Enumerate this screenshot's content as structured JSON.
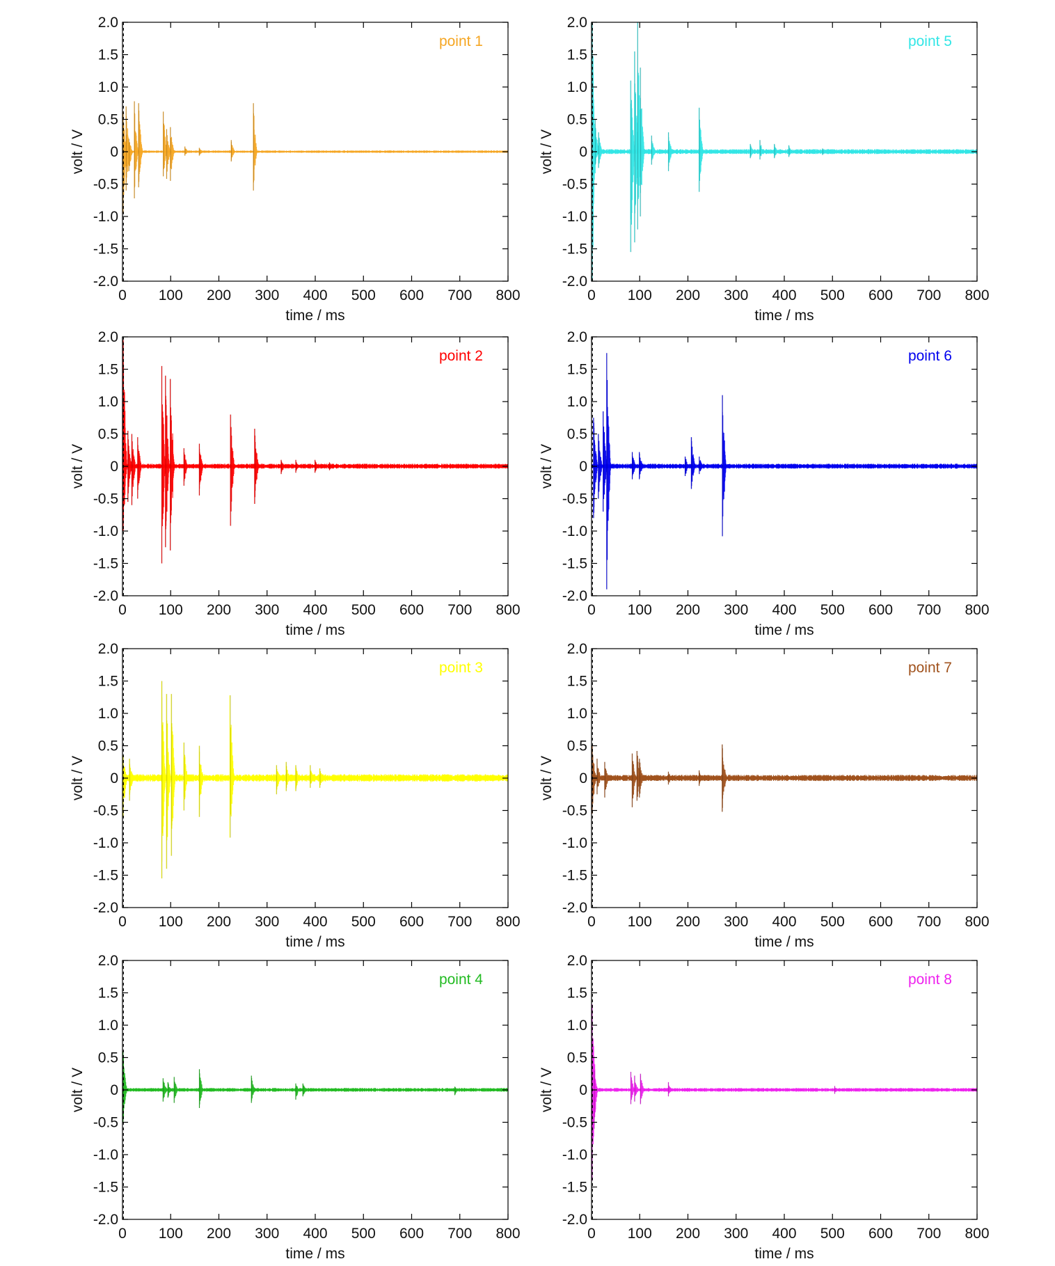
{
  "figure": {
    "colors": {
      "axis": "#000000",
      "zero_marker": "#000000"
    }
  },
  "chart_data": [
    {
      "type": "line",
      "legend": "point 1",
      "color": "#F5A623",
      "xlabel": "time / ms",
      "ylabel": "volt / V",
      "xlim": [
        0,
        800
      ],
      "ylim": [
        -2.0,
        2.0
      ],
      "xticks": [
        "0",
        "100",
        "200",
        "300",
        "400",
        "500",
        "600",
        "700",
        "800"
      ],
      "yticks": [
        "2.0",
        "1.5",
        "1.0",
        "0.5",
        "0",
        "-0.5",
        "-1.0",
        "-1.5",
        "-2.0"
      ],
      "legend_position": "top-right",
      "grid": false,
      "baseline_noise": 0.02,
      "bursts": [
        {
          "t": 2,
          "up": 0.62,
          "down": -0.95
        },
        {
          "t": 8,
          "up": 0.7,
          "down": -0.6
        },
        {
          "t": 14,
          "up": 0.2,
          "down": -0.3
        },
        {
          "t": 25,
          "up": 0.78,
          "down": -0.72
        },
        {
          "t": 34,
          "up": 0.75,
          "down": -0.55
        },
        {
          "t": 85,
          "up": 0.62,
          "down": -0.38
        },
        {
          "t": 92,
          "up": 0.35,
          "down": -0.42
        },
        {
          "t": 100,
          "up": 0.38,
          "down": -0.45
        },
        {
          "t": 130,
          "up": 0.08,
          "down": -0.06
        },
        {
          "t": 160,
          "up": 0.06,
          "down": -0.06
        },
        {
          "t": 226,
          "up": 0.18,
          "down": -0.15
        },
        {
          "t": 272,
          "up": 0.75,
          "down": -0.6
        }
      ]
    },
    {
      "type": "line",
      "legend": "point 2",
      "color": "#FF0000",
      "xlabel": "time / ms",
      "ylabel": "volt / V",
      "xlim": [
        0,
        800
      ],
      "ylim": [
        -2.0,
        2.0
      ],
      "xticks": [
        "0",
        "100",
        "200",
        "300",
        "400",
        "500",
        "600",
        "700",
        "800"
      ],
      "yticks": [
        "2.0",
        "1.5",
        "1.0",
        "0.5",
        "0",
        "-0.5",
        "-1.0",
        "-1.5",
        "-2.0"
      ],
      "legend_position": "top-right",
      "grid": false,
      "baseline_noise": 0.04,
      "bursts": [
        {
          "t": 2,
          "up": 1.95,
          "down": -1.0
        },
        {
          "t": 12,
          "up": 0.55,
          "down": -0.55
        },
        {
          "t": 20,
          "up": 0.5,
          "down": -0.6
        },
        {
          "t": 32,
          "up": 0.45,
          "down": -0.5
        },
        {
          "t": 82,
          "up": 1.55,
          "down": -1.5
        },
        {
          "t": 90,
          "up": 1.4,
          "down": -1.25
        },
        {
          "t": 100,
          "up": 1.35,
          "down": -1.3
        },
        {
          "t": 128,
          "up": 0.28,
          "down": -0.3
        },
        {
          "t": 160,
          "up": 0.35,
          "down": -0.45
        },
        {
          "t": 225,
          "up": 0.8,
          "down": -0.92
        },
        {
          "t": 275,
          "up": 0.58,
          "down": -0.58
        },
        {
          "t": 330,
          "up": 0.1,
          "down": -0.12
        },
        {
          "t": 360,
          "up": 0.1,
          "down": -0.1
        },
        {
          "t": 400,
          "up": 0.1,
          "down": -0.1
        },
        {
          "t": 430,
          "up": 0.06,
          "down": -0.06
        }
      ]
    },
    {
      "type": "line",
      "legend": "point 3",
      "color": "#FFFF00",
      "xlabel": "time / ms",
      "ylabel": "volt / V",
      "xlim": [
        0,
        800
      ],
      "ylim": [
        -2.0,
        2.0
      ],
      "xticks": [
        "0",
        "100",
        "200",
        "300",
        "400",
        "500",
        "600",
        "700",
        "800"
      ],
      "yticks": [
        "2.0",
        "1.5",
        "1.0",
        "0.5",
        "0",
        "-0.5",
        "-1.0",
        "-1.5",
        "-2.0"
      ],
      "legend_position": "top-right",
      "grid": false,
      "baseline_noise": 0.06,
      "bursts": [
        {
          "t": 2,
          "up": 0.35,
          "down": -0.6
        },
        {
          "t": 15,
          "up": 0.3,
          "down": -0.35
        },
        {
          "t": 82,
          "up": 1.5,
          "down": -1.55
        },
        {
          "t": 92,
          "up": 1.3,
          "down": -1.4
        },
        {
          "t": 102,
          "up": 1.3,
          "down": -1.2
        },
        {
          "t": 128,
          "up": 0.55,
          "down": -0.5
        },
        {
          "t": 160,
          "up": 0.5,
          "down": -0.6
        },
        {
          "t": 224,
          "up": 1.28,
          "down": -0.92
        },
        {
          "t": 320,
          "up": 0.2,
          "down": -0.25
        },
        {
          "t": 340,
          "up": 0.25,
          "down": -0.2
        },
        {
          "t": 360,
          "up": 0.2,
          "down": -0.2
        },
        {
          "t": 390,
          "up": 0.2,
          "down": -0.15
        },
        {
          "t": 410,
          "up": 0.15,
          "down": -0.15
        }
      ]
    },
    {
      "type": "line",
      "legend": "point 4",
      "color": "#22BB22",
      "xlabel": "time / ms",
      "ylabel": "volt / V",
      "xlim": [
        0,
        800
      ],
      "ylim": [
        -2.0,
        2.0
      ],
      "xticks": [
        "0",
        "100",
        "200",
        "300",
        "400",
        "500",
        "600",
        "700",
        "800"
      ],
      "yticks": [
        "2.0",
        "1.5",
        "1.0",
        "0.5",
        "0",
        "-0.5",
        "-1.0",
        "-1.5",
        "-2.0"
      ],
      "legend_position": "top-right",
      "grid": false,
      "baseline_noise": 0.03,
      "bursts": [
        {
          "t": 2,
          "up": 0.6,
          "down": -0.5
        },
        {
          "t": 85,
          "up": 0.18,
          "down": -0.18
        },
        {
          "t": 95,
          "up": 0.12,
          "down": -0.12
        },
        {
          "t": 108,
          "up": 0.2,
          "down": -0.2
        },
        {
          "t": 160,
          "up": 0.32,
          "down": -0.28
        },
        {
          "t": 268,
          "up": 0.22,
          "down": -0.2
        },
        {
          "t": 360,
          "up": 0.1,
          "down": -0.15
        },
        {
          "t": 375,
          "up": 0.1,
          "down": -0.1
        },
        {
          "t": 690,
          "up": 0.05,
          "down": -0.08
        }
      ]
    },
    {
      "type": "line",
      "legend": "point 5",
      "color": "#33E6E6",
      "xlabel": "time / ms",
      "ylabel": "volt / V",
      "xlim": [
        0,
        800
      ],
      "ylim": [
        -2.0,
        2.0
      ],
      "xticks": [
        "0",
        "100",
        "200",
        "300",
        "400",
        "500",
        "600",
        "700",
        "800"
      ],
      "yticks": [
        "2.0",
        "1.5",
        "1.0",
        "0.5",
        "0",
        "-0.5",
        "-1.0",
        "-1.5",
        "-2.0"
      ],
      "legend_position": "top-right",
      "grid": false,
      "baseline_noise": 0.04,
      "bursts": [
        {
          "t": 2,
          "up": 2.0,
          "down": -2.0
        },
        {
          "t": 8,
          "up": 0.5,
          "down": -0.2
        },
        {
          "t": 15,
          "up": 0.3,
          "down": -0.25
        },
        {
          "t": 82,
          "up": 1.1,
          "down": -1.55
        },
        {
          "t": 90,
          "up": 1.55,
          "down": -1.4
        },
        {
          "t": 96,
          "up": 2.0,
          "down": -1.2
        },
        {
          "t": 102,
          "up": 1.3,
          "down": -1.0
        },
        {
          "t": 125,
          "up": 0.25,
          "down": -0.2
        },
        {
          "t": 160,
          "up": 0.3,
          "down": -0.3
        },
        {
          "t": 224,
          "up": 0.68,
          "down": -0.62
        },
        {
          "t": 330,
          "up": 0.12,
          "down": -0.1
        },
        {
          "t": 350,
          "up": 0.18,
          "down": -0.12
        },
        {
          "t": 380,
          "up": 0.12,
          "down": -0.1
        },
        {
          "t": 410,
          "up": 0.1,
          "down": -0.08
        },
        {
          "t": 480,
          "up": 0.05,
          "down": -0.05
        }
      ]
    },
    {
      "type": "line",
      "legend": "point 6",
      "color": "#0000EE",
      "xlabel": "time / ms",
      "ylabel": "volt / V",
      "xlim": [
        0,
        800
      ],
      "ylim": [
        -2.0,
        2.0
      ],
      "xticks": [
        "0",
        "100",
        "200",
        "300",
        "400",
        "500",
        "600",
        "700",
        "800"
      ],
      "yticks": [
        "2.0",
        "1.5",
        "1.0",
        "0.5",
        "0",
        "-0.5",
        "-1.0",
        "-1.5",
        "-2.0"
      ],
      "legend_position": "top-right",
      "grid": false,
      "baseline_noise": 0.04,
      "bursts": [
        {
          "t": 5,
          "up": 0.75,
          "down": -0.8
        },
        {
          "t": 15,
          "up": 0.5,
          "down": -0.5
        },
        {
          "t": 25,
          "up": 0.85,
          "down": -0.7
        },
        {
          "t": 32,
          "up": 1.75,
          "down": -1.9
        },
        {
          "t": 85,
          "up": 0.22,
          "down": -0.2
        },
        {
          "t": 100,
          "up": 0.22,
          "down": -0.2
        },
        {
          "t": 195,
          "up": 0.15,
          "down": -0.15
        },
        {
          "t": 208,
          "up": 0.45,
          "down": -0.35
        },
        {
          "t": 224,
          "up": 0.15,
          "down": -0.12
        },
        {
          "t": 272,
          "up": 1.1,
          "down": -1.08
        }
      ]
    },
    {
      "type": "line",
      "legend": "point 7",
      "color": "#A0521D",
      "xlabel": "time / ms",
      "ylabel": "volt / V",
      "xlim": [
        0,
        800
      ],
      "ylim": [
        -2.0,
        2.0
      ],
      "xticks": [
        "0",
        "100",
        "200",
        "300",
        "400",
        "500",
        "600",
        "700",
        "800"
      ],
      "yticks": [
        "2.0",
        "1.5",
        "1.0",
        "0.5",
        "0",
        "-0.5",
        "-1.0",
        "-1.5",
        "-2.0"
      ],
      "legend_position": "top-right",
      "grid": false,
      "baseline_noise": 0.05,
      "bursts": [
        {
          "t": 2,
          "up": 0.5,
          "down": -0.55
        },
        {
          "t": 12,
          "up": 0.3,
          "down": -0.25
        },
        {
          "t": 28,
          "up": 0.25,
          "down": -0.3
        },
        {
          "t": 85,
          "up": 0.38,
          "down": -0.45
        },
        {
          "t": 95,
          "up": 0.42,
          "down": -0.35
        },
        {
          "t": 100,
          "up": 0.3,
          "down": -0.3
        },
        {
          "t": 160,
          "up": 0.1,
          "down": -0.1
        },
        {
          "t": 224,
          "up": 0.12,
          "down": -0.12
        },
        {
          "t": 272,
          "up": 0.52,
          "down": -0.52
        }
      ]
    },
    {
      "type": "line",
      "legend": "point 8",
      "color": "#EE22EE",
      "xlabel": "time / ms",
      "ylabel": "volt / V",
      "xlim": [
        0,
        800
      ],
      "ylim": [
        -2.0,
        2.0
      ],
      "xticks": [
        "0",
        "100",
        "200",
        "300",
        "400",
        "500",
        "600",
        "700",
        "800"
      ],
      "yticks": [
        "2.0",
        "1.5",
        "1.0",
        "0.5",
        "0",
        "-0.5",
        "-1.0",
        "-1.5",
        "-2.0"
      ],
      "legend_position": "top-right",
      "grid": false,
      "baseline_noise": 0.03,
      "bursts": [
        {
          "t": 2,
          "up": 1.32,
          "down": -1.4
        },
        {
          "t": 6,
          "up": 0.3,
          "down": -0.6
        },
        {
          "t": 82,
          "up": 0.28,
          "down": -0.22
        },
        {
          "t": 90,
          "up": 0.22,
          "down": -0.18
        },
        {
          "t": 102,
          "up": 0.25,
          "down": -0.22
        },
        {
          "t": 160,
          "up": 0.12,
          "down": -0.1
        },
        {
          "t": 505,
          "up": 0.06,
          "down": -0.06
        }
      ]
    }
  ]
}
